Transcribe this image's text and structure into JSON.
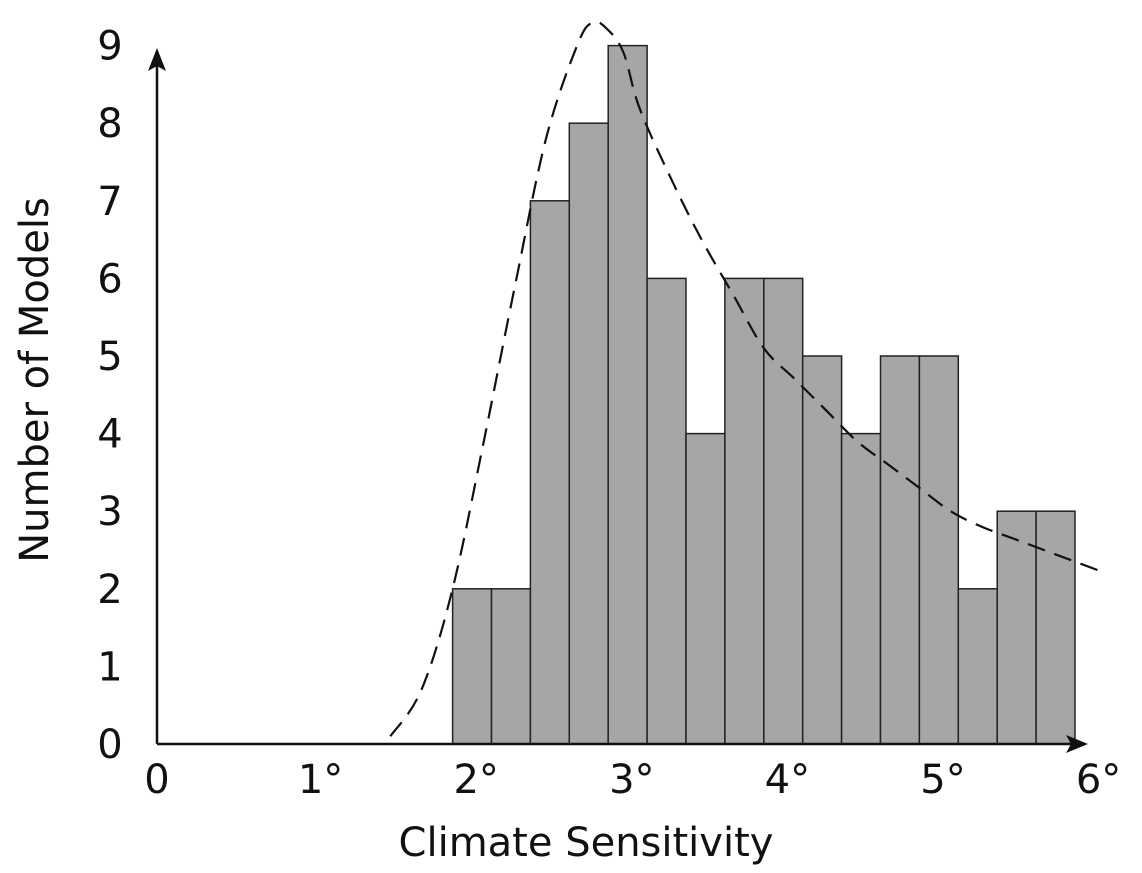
{
  "chart_data": {
    "type": "bar",
    "xlabel": "Climate Sensitivity",
    "ylabel": "Number of Models",
    "xlim": [
      0,
      6
    ],
    "ylim": [
      0,
      9
    ],
    "x_ticks": [
      {
        "value": 0,
        "label": "0"
      },
      {
        "value": 1,
        "label": "1°"
      },
      {
        "value": 2,
        "label": "2°"
      },
      {
        "value": 3,
        "label": "3°"
      },
      {
        "value": 4,
        "label": "4°"
      },
      {
        "value": 5,
        "label": "5°"
      },
      {
        "value": 6,
        "label": "6°"
      }
    ],
    "y_ticks": [
      {
        "value": 0,
        "label": "0"
      },
      {
        "value": 1,
        "label": "1"
      },
      {
        "value": 2,
        "label": "2"
      },
      {
        "value": 3,
        "label": "3"
      },
      {
        "value": 4,
        "label": "4"
      },
      {
        "value": 5,
        "label": "5"
      },
      {
        "value": 6,
        "label": "6"
      },
      {
        "value": 7,
        "label": "7"
      },
      {
        "value": 8,
        "label": "8"
      },
      {
        "value": 9,
        "label": "9"
      }
    ],
    "bins": [
      {
        "start": 1.9,
        "end": 2.15,
        "count": 2
      },
      {
        "start": 2.15,
        "end": 2.4,
        "count": 2
      },
      {
        "start": 2.4,
        "end": 2.65,
        "count": 7
      },
      {
        "start": 2.65,
        "end": 2.9,
        "count": 8
      },
      {
        "start": 2.9,
        "end": 3.15,
        "count": 9
      },
      {
        "start": 3.15,
        "end": 3.4,
        "count": 6
      },
      {
        "start": 3.4,
        "end": 3.65,
        "count": 4
      },
      {
        "start": 3.65,
        "end": 3.9,
        "count": 6
      },
      {
        "start": 3.9,
        "end": 4.15,
        "count": 6
      },
      {
        "start": 4.15,
        "end": 4.4,
        "count": 5
      },
      {
        "start": 4.4,
        "end": 4.65,
        "count": 4
      },
      {
        "start": 4.65,
        "end": 4.9,
        "count": 5
      },
      {
        "start": 4.9,
        "end": 5.15,
        "count": 5
      },
      {
        "start": 5.15,
        "end": 5.4,
        "count": 2
      },
      {
        "start": 5.4,
        "end": 5.65,
        "count": 3
      },
      {
        "start": 5.65,
        "end": 5.9,
        "count": 3
      }
    ],
    "fit_curve": {
      "style": "dashed",
      "points": [
        [
          1.5,
          0.1
        ],
        [
          1.7,
          0.7
        ],
        [
          1.9,
          2.0
        ],
        [
          2.1,
          3.9
        ],
        [
          2.3,
          5.9
        ],
        [
          2.5,
          7.8
        ],
        [
          2.7,
          9.0
        ],
        [
          2.8,
          9.3
        ],
        [
          2.9,
          9.2
        ],
        [
          3.0,
          8.9
        ],
        [
          3.1,
          8.2
        ],
        [
          3.3,
          7.3
        ],
        [
          3.5,
          6.5
        ],
        [
          3.7,
          5.8
        ],
        [
          3.9,
          5.1
        ],
        [
          4.1,
          4.7
        ],
        [
          4.3,
          4.3
        ],
        [
          4.5,
          3.9
        ],
        [
          4.7,
          3.6
        ],
        [
          4.9,
          3.3
        ],
        [
          5.1,
          3.0
        ],
        [
          5.3,
          2.8
        ],
        [
          5.5,
          2.65
        ],
        [
          5.7,
          2.5
        ],
        [
          5.9,
          2.35
        ],
        [
          6.1,
          2.2
        ]
      ]
    },
    "bar_color": "#a6a6a6",
    "bar_stroke": "#222222",
    "grid": false,
    "legend": "none"
  }
}
